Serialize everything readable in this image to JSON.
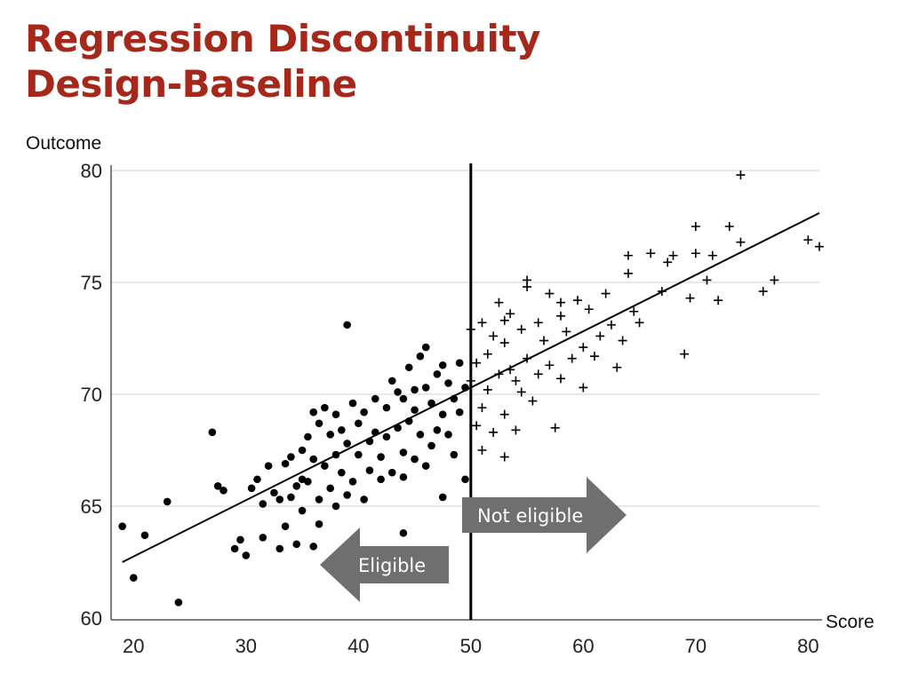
{
  "title": {
    "line1": "Regression Discontinuity",
    "line2": "Design-Baseline"
  },
  "colors": {
    "title": "#a5281b",
    "arrow": "#6f6f6f",
    "points": "#000000",
    "grid": "#d9d9d9"
  },
  "chart_data": {
    "type": "scatter",
    "xlabel": "Score",
    "ylabel": "Outcome",
    "xlim": [
      18,
      81
    ],
    "ylim": [
      60,
      80
    ],
    "xticks": [
      20,
      30,
      40,
      50,
      60,
      70,
      80
    ],
    "yticks": [
      60,
      65,
      70,
      75,
      80
    ],
    "grid": "horizontal",
    "cutoff": 50,
    "regression_line": {
      "x1": 19,
      "y1": 62.5,
      "x2": 81,
      "y2": 78.1
    },
    "annotations": {
      "eligible": {
        "text": "Eligible",
        "direction": "left"
      },
      "not_eligible": {
        "text": "Not eligible",
        "direction": "right"
      }
    },
    "series": [
      {
        "marker": "circle",
        "points": [
          [
            19,
            64.1
          ],
          [
            20,
            61.8
          ],
          [
            21,
            63.7
          ],
          [
            23,
            65.2
          ],
          [
            24,
            60.7
          ],
          [
            27,
            68.3
          ],
          [
            27.5,
            65.9
          ],
          [
            28,
            65.7
          ],
          [
            29,
            63.1
          ],
          [
            29.5,
            63.5
          ],
          [
            30,
            62.8
          ],
          [
            30.5,
            65.8
          ],
          [
            31,
            66.2
          ],
          [
            31.5,
            65.1
          ],
          [
            31.5,
            63.6
          ],
          [
            32,
            66.8
          ],
          [
            32.5,
            65.6
          ],
          [
            33,
            65.3
          ],
          [
            33.5,
            66.9
          ],
          [
            33.5,
            64.1
          ],
          [
            34,
            65.4
          ],
          [
            34,
            67.2
          ],
          [
            34.5,
            65.9
          ],
          [
            34.5,
            63.3
          ],
          [
            35,
            67.5
          ],
          [
            35,
            66.2
          ],
          [
            35,
            64.8
          ],
          [
            35.5,
            68.1
          ],
          [
            35.5,
            66.1
          ],
          [
            36,
            69.2
          ],
          [
            36,
            67.1
          ],
          [
            36,
            63.2
          ],
          [
            36.5,
            65.3
          ],
          [
            36.5,
            64.2
          ],
          [
            36.5,
            68.7
          ],
          [
            37,
            69.4
          ],
          [
            37,
            66.8
          ],
          [
            37.5,
            65.8
          ],
          [
            37.5,
            68.2
          ],
          [
            38,
            67.3
          ],
          [
            38,
            69.1
          ],
          [
            38.5,
            68.4
          ],
          [
            38.5,
            66.5
          ],
          [
            39,
            73.1
          ],
          [
            39,
            67.8
          ],
          [
            39,
            65.5
          ],
          [
            39.5,
            69.6
          ],
          [
            39.5,
            66.1
          ],
          [
            40,
            67.3
          ],
          [
            40,
            68.7
          ],
          [
            40.5,
            65.3
          ],
          [
            40.5,
            69.2
          ],
          [
            41,
            67.9
          ],
          [
            41,
            66.6
          ],
          [
            41.5,
            69.8
          ],
          [
            41.5,
            68.3
          ],
          [
            42,
            67.2
          ],
          [
            42,
            66.2
          ],
          [
            42.5,
            69.4
          ],
          [
            42.5,
            68.1
          ],
          [
            43,
            70.6
          ],
          [
            43,
            66.5
          ],
          [
            43.5,
            68.5
          ],
          [
            43.5,
            70.1
          ],
          [
            44,
            67.4
          ],
          [
            44,
            69.8
          ],
          [
            44,
            66.3
          ],
          [
            44.5,
            71.2
          ],
          [
            44.5,
            68.8
          ],
          [
            45,
            70.2
          ],
          [
            45,
            67.1
          ],
          [
            45,
            69.3
          ],
          [
            45.5,
            71.7
          ],
          [
            45.5,
            68.2
          ],
          [
            46,
            72.1
          ],
          [
            46,
            70.3
          ],
          [
            46,
            66.8
          ],
          [
            46.5,
            69.6
          ],
          [
            46.5,
            67.7
          ],
          [
            47,
            70.9
          ],
          [
            47,
            68.4
          ],
          [
            47.5,
            71.3
          ],
          [
            47.5,
            69.1
          ],
          [
            47.5,
            65.4
          ],
          [
            48,
            70.5
          ],
          [
            48,
            68.2
          ],
          [
            48.5,
            69.8
          ],
          [
            48.5,
            67.3
          ],
          [
            49,
            71.4
          ],
          [
            49,
            69.2
          ],
          [
            49.5,
            70.3
          ],
          [
            49.5,
            66.2
          ],
          [
            44,
            63.8
          ],
          [
            38,
            65.0
          ],
          [
            33,
            63.1
          ]
        ]
      },
      {
        "marker": "cross",
        "points": [
          [
            50,
            72.9
          ],
          [
            50,
            70.6
          ],
          [
            50.5,
            71.4
          ],
          [
            50.5,
            68.6
          ],
          [
            51,
            73.2
          ],
          [
            51,
            69.4
          ],
          [
            51,
            67.5
          ],
          [
            51.5,
            71.8
          ],
          [
            51.5,
            70.2
          ],
          [
            52,
            72.6
          ],
          [
            52,
            68.3
          ],
          [
            52.5,
            74.1
          ],
          [
            52.5,
            70.9
          ],
          [
            53,
            72.3
          ],
          [
            53,
            69.1
          ],
          [
            53,
            67.2
          ],
          [
            53.5,
            73.6
          ],
          [
            53.5,
            71.1
          ],
          [
            54,
            70.6
          ],
          [
            54,
            68.4
          ],
          [
            54.5,
            72.9
          ],
          [
            54.5,
            70.1
          ],
          [
            55,
            74.8
          ],
          [
            55,
            71.6
          ],
          [
            55.5,
            69.7
          ],
          [
            56,
            73.2
          ],
          [
            56,
            70.9
          ],
          [
            56.5,
            72.4
          ],
          [
            57,
            74.5
          ],
          [
            57,
            71.3
          ],
          [
            57.5,
            68.5
          ],
          [
            58,
            73.5
          ],
          [
            58,
            70.7
          ],
          [
            58.5,
            72.8
          ],
          [
            59,
            71.6
          ],
          [
            59.5,
            74.2
          ],
          [
            60,
            72.1
          ],
          [
            60,
            70.3
          ],
          [
            60.5,
            73.8
          ],
          [
            61,
            71.7
          ],
          [
            61.5,
            72.6
          ],
          [
            62,
            74.5
          ],
          [
            62.5,
            73.1
          ],
          [
            63,
            71.2
          ],
          [
            63.5,
            72.4
          ],
          [
            64,
            75.4
          ],
          [
            64,
            76.2
          ],
          [
            64.5,
            73.7
          ],
          [
            65,
            73.2
          ],
          [
            66,
            76.3
          ],
          [
            67,
            74.6
          ],
          [
            67.5,
            75.9
          ],
          [
            68,
            76.2
          ],
          [
            69,
            71.8
          ],
          [
            69.5,
            74.3
          ],
          [
            70,
            77.5
          ],
          [
            70,
            76.3
          ],
          [
            71,
            75.1
          ],
          [
            71.5,
            76.2
          ],
          [
            72,
            74.2
          ],
          [
            73,
            77.5
          ],
          [
            74,
            76.8
          ],
          [
            74,
            79.8
          ],
          [
            76,
            74.6
          ],
          [
            77,
            75.1
          ],
          [
            80,
            76.9
          ],
          [
            81,
            76.6
          ],
          [
            55,
            75.1
          ],
          [
            53,
            73.3
          ],
          [
            58,
            74.1
          ]
        ]
      }
    ]
  }
}
